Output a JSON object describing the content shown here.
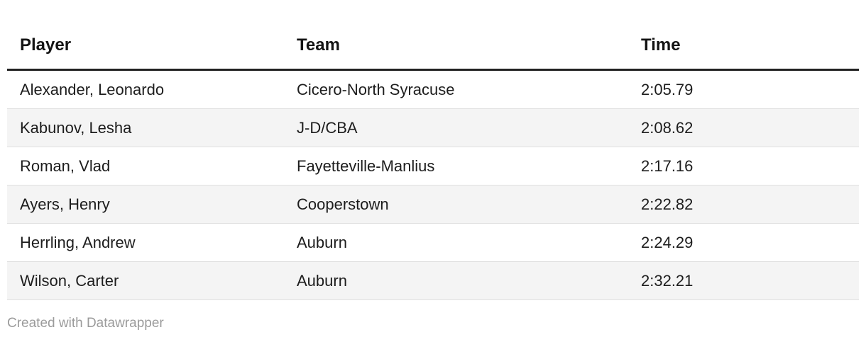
{
  "chart_data": {
    "type": "table",
    "columns": [
      "Player",
      "Team",
      "Time"
    ],
    "rows": [
      [
        "Alexander, Leonardo",
        "Cicero-North Syracuse",
        "2:05.79"
      ],
      [
        "Kabunov, Lesha",
        "J-D/CBA",
        "2:08.62"
      ],
      [
        "Roman, Vlad",
        "Fayetteville-Manlius",
        "2:17.16"
      ],
      [
        "Ayers, Henry",
        "Cooperstown",
        "2:22.82"
      ],
      [
        "Herrling, Andrew",
        "Auburn",
        "2:24.29"
      ],
      [
        "Wilson, Carter",
        "Auburn",
        "2:32.21"
      ]
    ],
    "title": "",
    "layout_hints": {
      "zebra_striping": true,
      "striped_rows": "even",
      "header_rule": true
    }
  },
  "footer": {
    "attribution": "Created with Datawrapper"
  },
  "colors": {
    "header_rule": "#212121",
    "row_border": "#e0e0e0",
    "stripe_bg": "#f4f4f4",
    "text": "#1d1d1d",
    "header_text": "#141414",
    "footer_text": "#9b9b9b",
    "page_bg": "#ffffff"
  }
}
